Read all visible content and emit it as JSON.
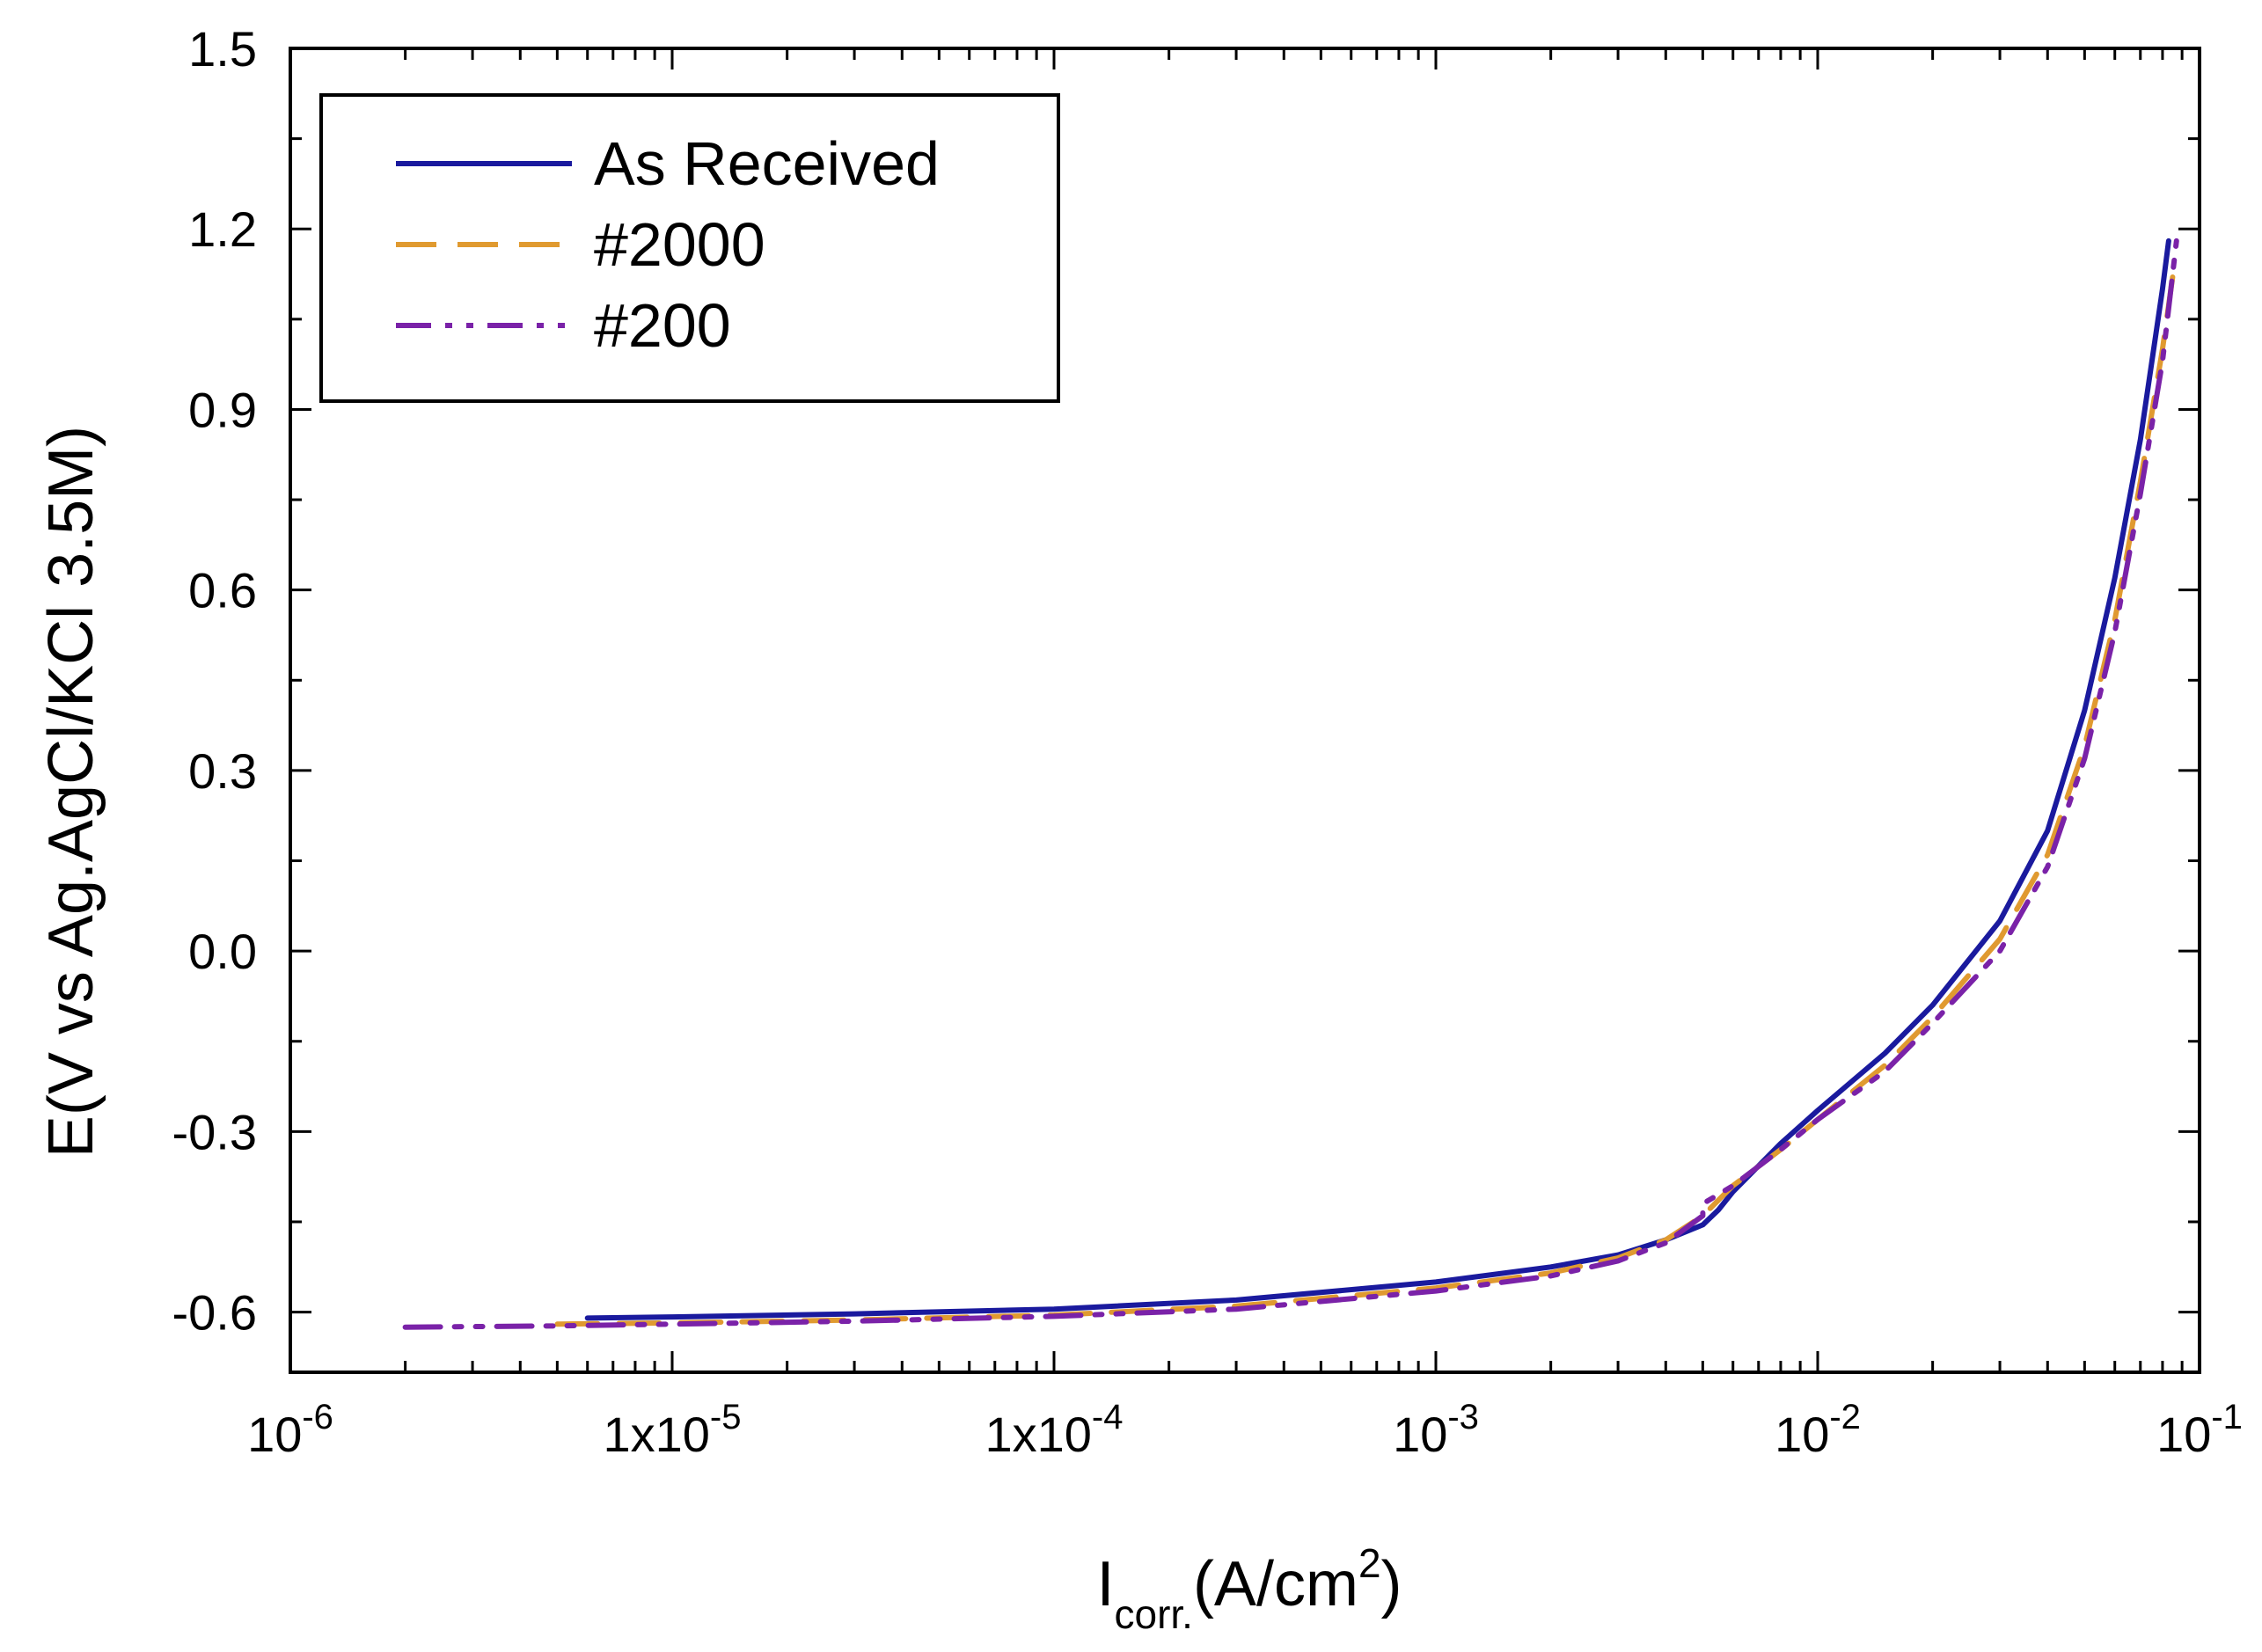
{
  "chart_data": {
    "type": "line",
    "title": "",
    "xlabel": {
      "main": "I",
      "sub": "corr.",
      "rest": "(A/cm",
      "sup": "2",
      "end": ")"
    },
    "ylabel": "E(V vs Ag.AgCl/KCl 3.5M)",
    "xscale": "log",
    "xlim": [
      1e-06,
      0.1
    ],
    "ylim": [
      -0.7,
      1.5
    ],
    "yticks": [
      -0.6,
      -0.3,
      0.0,
      0.3,
      0.6,
      0.9,
      1.2,
      1.5
    ],
    "ytick_labels": [
      "-0.6",
      "-0.3",
      "0.0",
      "0.3",
      "0.6",
      "0.9",
      "1.2",
      "1.5"
    ],
    "xticks": [
      {
        "value": 1e-06,
        "base": "10",
        "exp": "-6"
      },
      {
        "value": 1e-05,
        "base": "1x10",
        "exp": "-5"
      },
      {
        "value": 0.0001,
        "base": "1x10",
        "exp": "-4"
      },
      {
        "value": 0.001,
        "base": "10",
        "exp": "-3"
      },
      {
        "value": 0.01,
        "base": "10",
        "exp": "-2"
      },
      {
        "value": 0.1,
        "base": "10",
        "exp": "-1"
      }
    ],
    "legend_position": "top-left",
    "series": [
      {
        "name": "As Received",
        "color": "#1a1a9e",
        "style": "solid",
        "points": [
          [
            6e-06,
            -0.61
          ],
          [
            1e-05,
            -0.608
          ],
          [
            3e-05,
            -0.603
          ],
          [
            0.0001,
            -0.595
          ],
          [
            0.0003,
            -0.58
          ],
          [
            0.001,
            -0.55
          ],
          [
            0.002,
            -0.525
          ],
          [
            0.003,
            -0.505
          ],
          [
            0.004,
            -0.48
          ],
          [
            0.005,
            -0.455
          ],
          [
            0.0055,
            -0.43
          ],
          [
            0.006,
            -0.4
          ],
          [
            0.008,
            -0.32
          ],
          [
            0.01,
            -0.265
          ],
          [
            0.015,
            -0.17
          ],
          [
            0.02,
            -0.09
          ],
          [
            0.03,
            0.05
          ],
          [
            0.04,
            0.2
          ],
          [
            0.05,
            0.4
          ],
          [
            0.06,
            0.62
          ],
          [
            0.07,
            0.85
          ],
          [
            0.08,
            1.1
          ],
          [
            0.083,
            1.18
          ]
        ]
      },
      {
        "name": "#2000",
        "color": "#e09a30",
        "style": "dashed",
        "points": [
          [
            5e-06,
            -0.62
          ],
          [
            1e-05,
            -0.618
          ],
          [
            3e-05,
            -0.613
          ],
          [
            0.0001,
            -0.605
          ],
          [
            0.0003,
            -0.59
          ],
          [
            0.001,
            -0.56
          ],
          [
            0.002,
            -0.535
          ],
          [
            0.003,
            -0.51
          ],
          [
            0.004,
            -0.48
          ],
          [
            0.005,
            -0.44
          ],
          [
            0.006,
            -0.39
          ],
          [
            0.008,
            -0.33
          ],
          [
            0.01,
            -0.28
          ],
          [
            0.015,
            -0.19
          ],
          [
            0.02,
            -0.11
          ],
          [
            0.03,
            0.02
          ],
          [
            0.04,
            0.16
          ],
          [
            0.05,
            0.34
          ],
          [
            0.06,
            0.55
          ],
          [
            0.07,
            0.78
          ],
          [
            0.08,
            1.0
          ],
          [
            0.085,
            1.12
          ]
        ]
      },
      {
        "name": "#200",
        "color": "#7a22a8",
        "style": "dashdotdot",
        "points": [
          [
            2e-06,
            -0.625
          ],
          [
            5e-06,
            -0.623
          ],
          [
            1e-05,
            -0.62
          ],
          [
            3e-05,
            -0.615
          ],
          [
            0.0001,
            -0.607
          ],
          [
            0.0003,
            -0.595
          ],
          [
            0.001,
            -0.565
          ],
          [
            0.002,
            -0.54
          ],
          [
            0.003,
            -0.515
          ],
          [
            0.004,
            -0.485
          ],
          [
            0.005,
            -0.44
          ],
          [
            0.005,
            -0.42
          ],
          [
            0.006,
            -0.39
          ],
          [
            0.008,
            -0.33
          ],
          [
            0.01,
            -0.28
          ],
          [
            0.015,
            -0.2
          ],
          [
            0.02,
            -0.12
          ],
          [
            0.03,
            0.0
          ],
          [
            0.04,
            0.14
          ],
          [
            0.05,
            0.32
          ],
          [
            0.06,
            0.53
          ],
          [
            0.07,
            0.76
          ],
          [
            0.08,
            0.98
          ],
          [
            0.087,
            1.18
          ]
        ]
      }
    ]
  }
}
